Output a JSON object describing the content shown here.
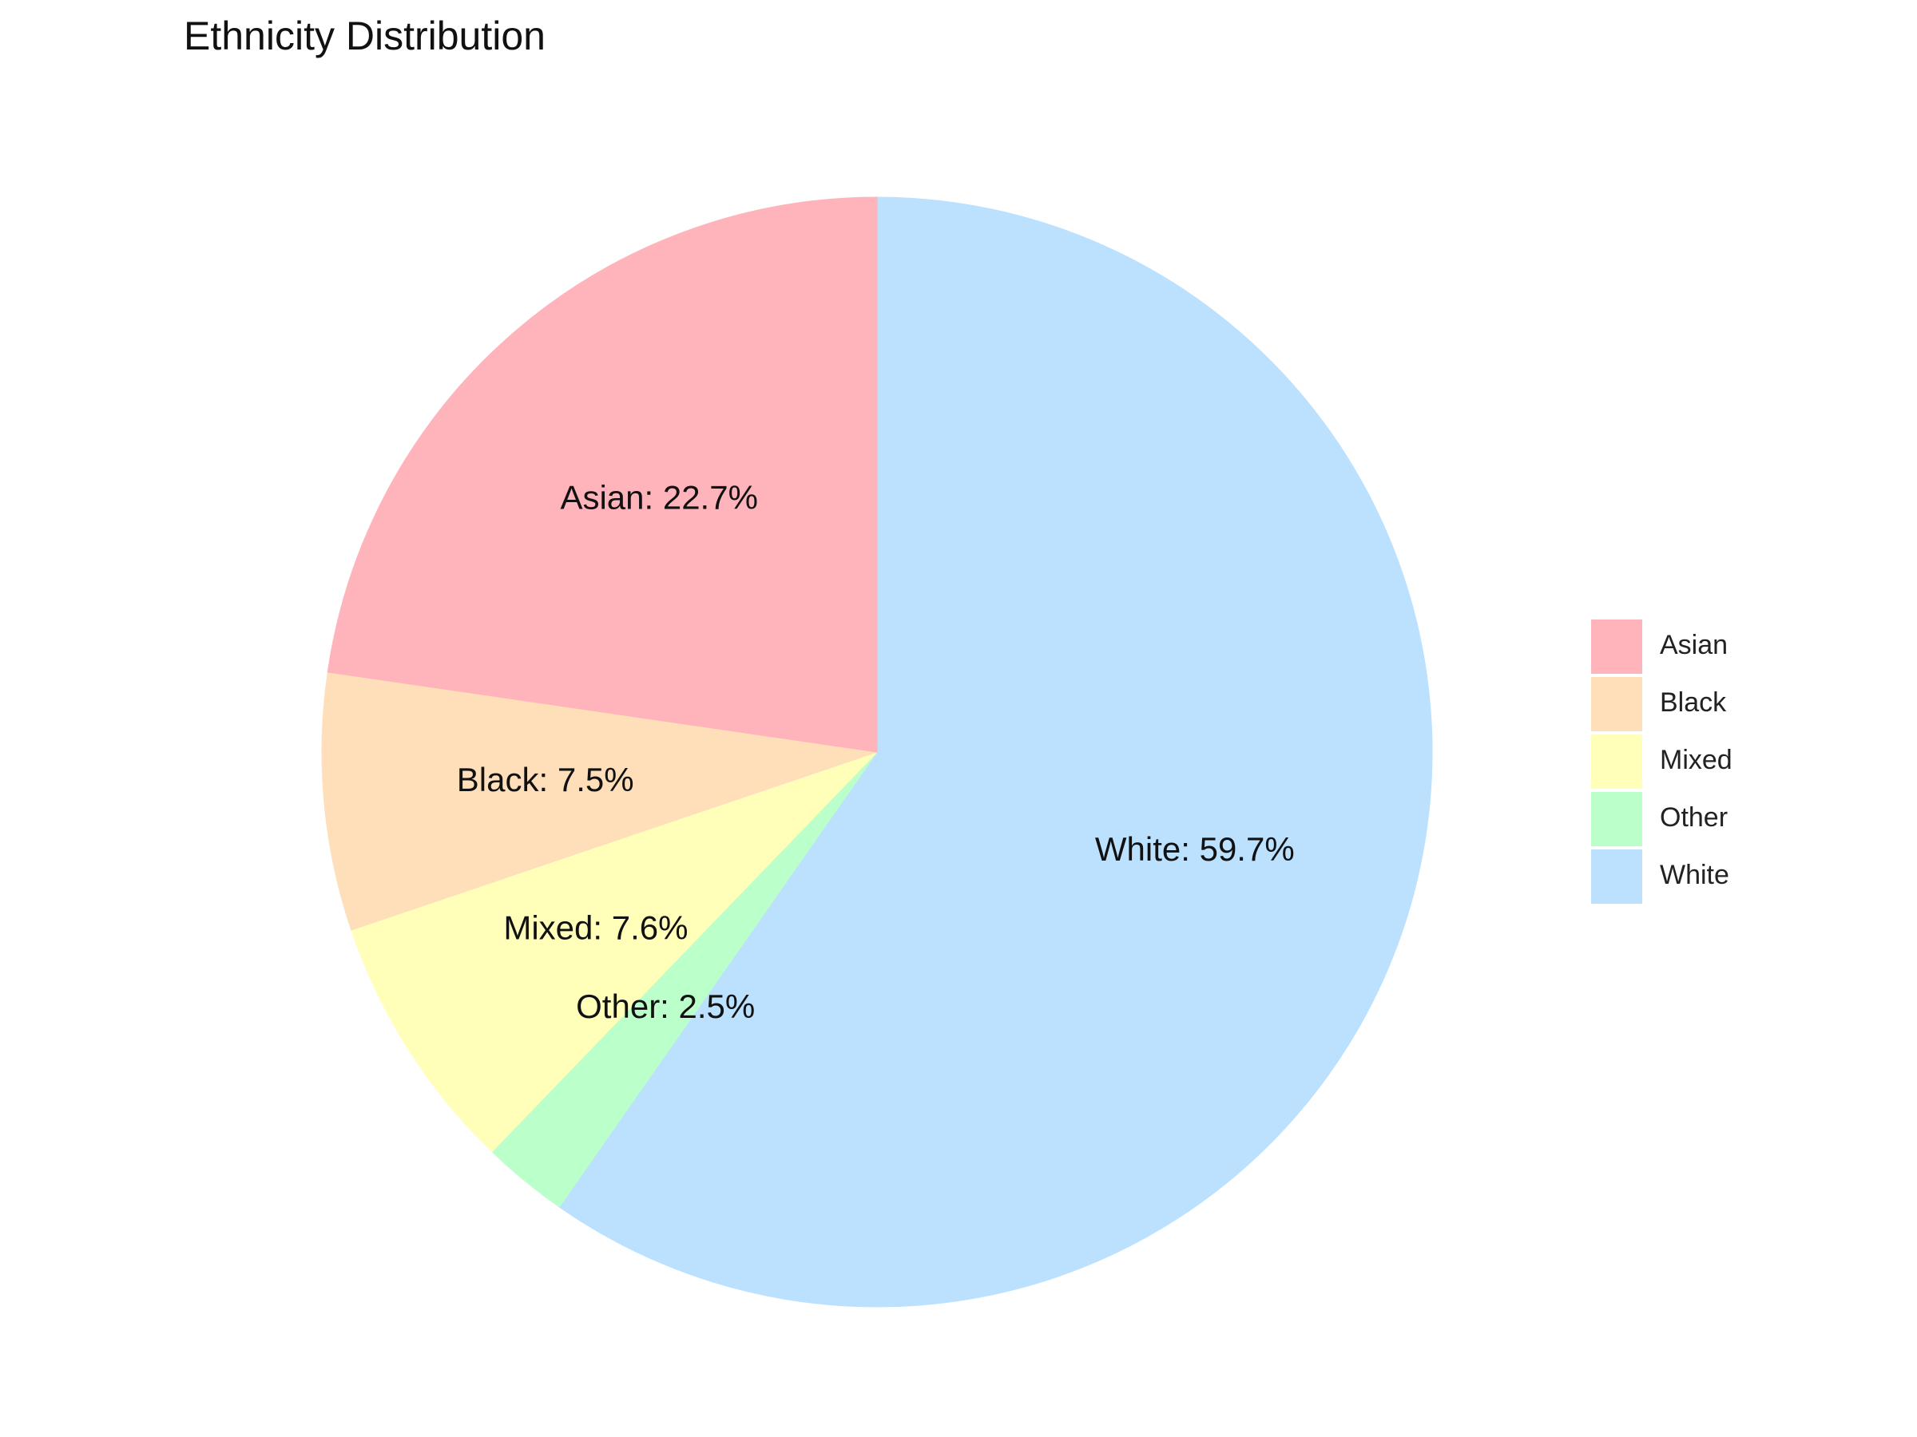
{
  "chart_data": {
    "type": "pie",
    "title": "Ethnicity Distribution",
    "start_angle_deg": 90,
    "direction": "clockwise-from-top",
    "slices": [
      {
        "label": "White",
        "value": 59.7,
        "display": "White: 59.7%",
        "color": "#BBE1FF"
      },
      {
        "label": "Other",
        "value": 2.5,
        "display": "Other: 2.5%",
        "color": "#BBFFCA"
      },
      {
        "label": "Mixed",
        "value": 7.6,
        "display": "Mixed: 7.6%",
        "color": "#FFFFBA"
      },
      {
        "label": "Black",
        "value": 7.5,
        "display": "Black: 7.5%",
        "color": "#FFDFBA"
      },
      {
        "label": "Asian",
        "value": 22.7,
        "display": "Asian: 22.7%",
        "color": "#FFB3BA"
      }
    ],
    "legend": {
      "position": "right",
      "entries": [
        "Asian",
        "Black",
        "Mixed",
        "Other",
        "White"
      ]
    }
  }
}
